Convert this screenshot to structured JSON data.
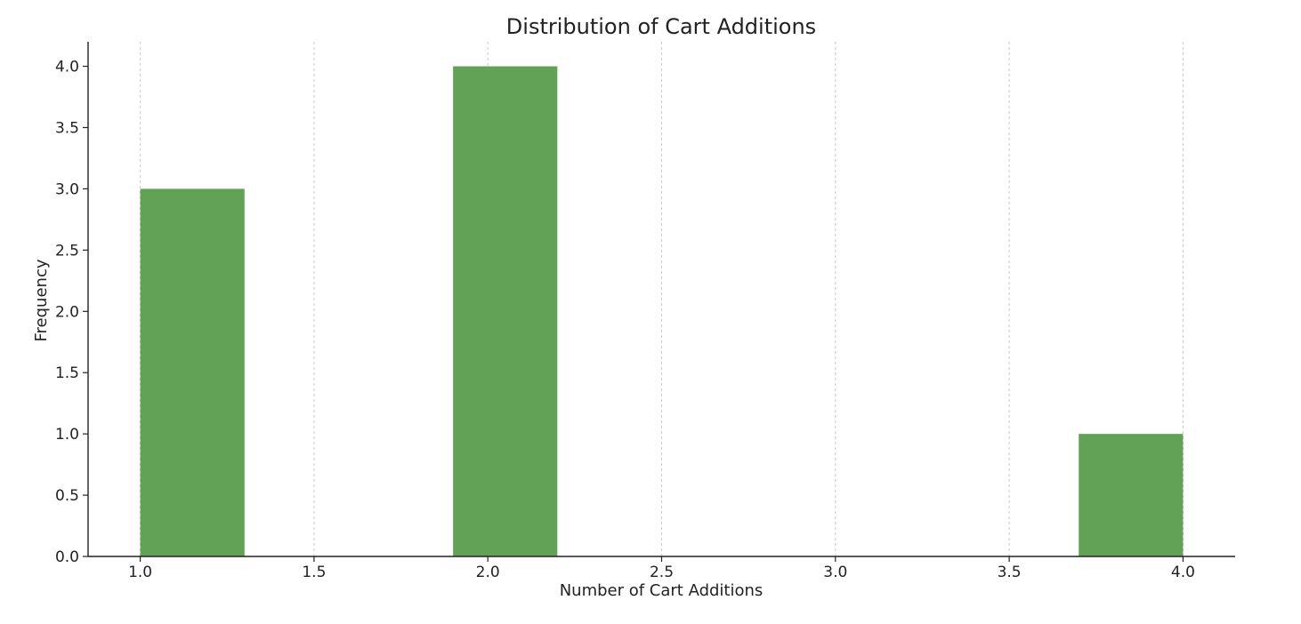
{
  "chart_data": {
    "type": "bar",
    "title": "Distribution of Cart Additions",
    "xlabel": "Number of Cart Additions",
    "ylabel": "Frequency",
    "bins": [
      {
        "x_start": 1.0,
        "x_end": 1.3,
        "value": 3
      },
      {
        "x_start": 1.9,
        "x_end": 2.2,
        "value": 4
      },
      {
        "x_start": 2.2,
        "x_end": 2.5,
        "value": 0
      },
      {
        "x_start": 2.5,
        "x_end": 2.8,
        "value": 0
      },
      {
        "x_start": 2.8,
        "x_end": 3.1,
        "value": 0
      },
      {
        "x_start": 3.1,
        "x_end": 3.4,
        "value": 0
      },
      {
        "x_start": 3.4,
        "x_end": 3.7,
        "value": 0
      },
      {
        "x_start": 3.7,
        "x_end": 4.0,
        "value": 1
      }
    ],
    "xlim": [
      0.85,
      4.15
    ],
    "ylim": [
      0,
      4.2
    ],
    "x_ticks": [
      "1.0",
      "1.5",
      "2.0",
      "2.5",
      "3.0",
      "3.5",
      "4.0"
    ],
    "y_ticks": [
      "0.0",
      "0.5",
      "1.0",
      "1.5",
      "2.0",
      "2.5",
      "3.0",
      "3.5",
      "4.0"
    ],
    "bar_color": "#62a256",
    "grid": "vertical dashed"
  }
}
